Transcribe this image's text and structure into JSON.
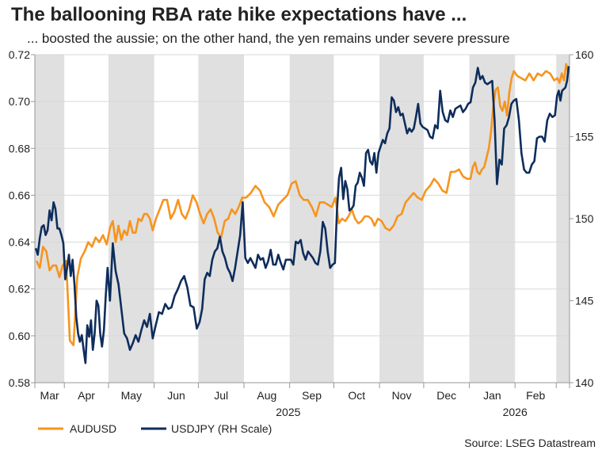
{
  "chart_data": {
    "type": "line",
    "title": "The ballooning RBA rate hike expectations have ...",
    "subtitle": "... boosted the aussie; on the other hand, the yen remains under severe pressure",
    "source": "Source: LSEG Datastream",
    "x_start": "2025-03-12",
    "x_end": "2026-03-10",
    "month_labels": [
      "Mar",
      "Apr",
      "May",
      "Jun",
      "Jul",
      "Aug",
      "Sep",
      "Oct",
      "Nov",
      "Dec",
      "Jan",
      "Feb",
      ""
    ],
    "month_starts": [
      "2025-03-12",
      "2025-04-01",
      "2025-05-01",
      "2025-06-01",
      "2025-07-01",
      "2025-08-01",
      "2025-09-01",
      "2025-10-01",
      "2025-11-01",
      "2025-12-01",
      "2026-01-01",
      "2026-02-01",
      "2026-03-01"
    ],
    "year_labels": [
      {
        "label": "2025",
        "center": "2025-08-31"
      },
      {
        "label": "2026",
        "center": "2026-02-01"
      }
    ],
    "left_axis": {
      "ylim": [
        0.58,
        0.72
      ],
      "ticks": [
        "0.58",
        "0.60",
        "0.62",
        "0.64",
        "0.66",
        "0.68",
        "0.70",
        "0.72"
      ]
    },
    "right_axis": {
      "ylim": [
        140,
        160
      ],
      "ticks": [
        "140",
        "145",
        "150",
        "155",
        "160"
      ]
    },
    "grid": true,
    "shaded_months": "alternating",
    "legend_position": "bottom-left",
    "series": [
      {
        "name": "AUDUSD",
        "axis": "left",
        "color": "#F7941D",
        "monthly_values": [
          [
            0.632,
            0.629,
            0.638,
            0.636,
            0.628,
            0.63,
            0.63,
            0.625,
            0.63
          ],
          [
            0.632,
            0.598,
            0.596,
            0.625,
            0.633,
            0.636,
            0.64,
            0.638,
            0.642,
            0.64,
            0.643,
            0.639
          ],
          [
            0.646,
            0.649,
            0.64,
            0.647,
            0.641,
            0.645,
            0.643,
            0.649,
            0.644,
            0.644,
            0.65,
            0.649,
            0.652,
            0.652,
            0.65,
            0.645
          ],
          [
            0.65,
            0.654,
            0.658,
            0.658,
            0.65,
            0.653,
            0.658,
            0.652,
            0.65,
            0.654,
            0.66,
            0.657
          ],
          [
            0.652,
            0.648,
            0.652,
            0.654,
            0.65,
            0.644,
            0.642,
            0.649,
            0.65,
            0.654,
            0.652,
            0.655,
            0.659
          ],
          [
            0.659,
            0.661,
            0.664,
            0.662,
            0.657,
            0.655,
            0.651,
            0.656,
            0.658,
            0.66
          ],
          [
            0.665,
            0.666,
            0.66,
            0.658,
            0.658,
            0.655,
            0.651,
            0.657,
            0.657,
            0.656,
            0.655
          ],
          [
            0.659,
            0.648,
            0.65,
            0.649,
            0.651,
            0.654,
            0.65,
            0.648,
            0.649,
            0.651,
            0.651,
            0.65,
            0.647,
            0.65
          ],
          [
            0.649,
            0.646,
            0.645,
            0.647,
            0.651,
            0.652,
            0.657,
            0.659,
            0.661,
            0.659,
            0.658
          ],
          [
            0.662,
            0.664,
            0.667,
            0.665,
            0.662,
            0.661,
            0.67,
            0.67,
            0.671,
            0.668,
            0.667
          ],
          [
            0.667,
            0.672,
            0.674,
            0.67,
            0.669,
            0.671,
            0.672,
            0.676,
            0.68,
            0.687,
            0.698,
            0.705,
            0.706,
            0.698,
            0.696,
            0.7,
            0.694,
            0.704,
            0.71,
            0.713
          ],
          [
            0.711,
            0.71,
            0.709,
            0.712,
            0.709,
            0.712,
            0.711,
            0.713,
            0.712,
            0.709
          ],
          [
            0.71,
            0.708,
            0.712,
            0.709,
            0.716,
            0.712
          ]
        ]
      },
      {
        "name": "USDJPY (RH Scale)",
        "axis": "right",
        "color": "#0E2D5C",
        "monthly_values": [
          [
            148.2,
            147.8,
            148.8,
            149.5,
            149.6,
            149.0,
            149.3,
            150.5,
            149.9,
            151.0,
            150.6,
            149.4,
            149.4,
            149.0,
            148.5
          ],
          [
            146.3,
            147.0,
            147.8,
            146.5,
            147.5,
            146.0,
            144.0,
            143.0,
            142.5,
            142.9,
            142.0,
            141.2,
            143.5,
            142.8,
            143.8,
            142.0,
            143.0,
            145.0,
            144.7,
            143.0,
            142.2,
            143.2,
            145.3,
            147.0
          ],
          [
            145.0,
            148.5,
            146.8,
            146.0,
            144.5,
            143.0,
            142.7,
            142.0,
            142.4,
            142.9,
            142.5,
            143.2,
            143.8,
            143.4,
            144.2,
            142.7
          ],
          [
            143.5,
            144.3,
            144.2,
            144.8,
            144.5,
            144.6,
            145.3,
            145.7,
            146.2,
            146.5,
            145.8,
            144.7,
            144.6,
            143.3
          ],
          [
            143.7,
            144.5,
            146.3,
            146.7,
            146.5,
            147.5,
            148.0,
            148.2,
            148.9,
            148.0,
            147.6,
            147.0,
            146.7,
            146.2,
            147.0,
            148.0,
            149.0,
            151.0
          ],
          [
            147.6,
            147.3,
            147.6,
            147.3,
            147.0,
            147.8,
            147.5,
            147.6,
            147.0,
            147.4,
            148.1,
            147.2,
            147.2,
            147.8,
            147.3,
            146.9,
            147.5,
            147.5
          ],
          [
            147.5,
            147.2,
            148.6,
            148.5,
            148.7,
            147.9,
            147.5,
            148.0,
            147.8,
            147.6,
            147.3,
            147.2,
            148.0,
            149.8,
            149.4,
            148.0,
            147.0,
            147.2
          ],
          [
            147.3,
            150.5,
            152.5,
            153.1,
            151.2,
            152.3,
            151.8,
            150.5,
            150.6,
            150.8,
            152.0,
            152.2,
            152.8,
            152.5,
            152.0,
            154.0,
            154.2,
            153.5,
            153.3,
            154.0,
            152.8,
            154.0
          ],
          [
            154.4,
            154.8,
            154.6,
            155.2,
            155.5,
            157.4,
            157.2,
            156.5,
            156.8,
            156.3,
            156.4,
            155.8,
            155.2,
            155.5,
            155.3,
            155.5,
            156.2,
            157.0,
            155.8,
            155.6
          ],
          [
            155.5,
            155.4,
            155.0,
            154.9,
            155.7,
            155.5,
            157.8,
            156.5,
            156.0,
            155.9,
            156.6,
            156.2,
            156.7,
            156.8,
            156.9,
            156.5,
            156.7,
            157.0
          ],
          [
            157.1,
            158.0,
            158.3,
            159.2,
            158.5,
            158.7,
            158.3,
            158.2,
            158.3,
            158.4,
            156.0,
            152.1,
            153.6,
            153.3,
            155.5,
            155.7,
            156.2,
            157.0,
            157.2
          ],
          [
            157.3,
            156.0,
            154.0,
            153.0,
            152.8,
            152.8,
            153.3,
            153.5,
            154.9,
            155.0,
            155.0,
            154.7,
            156.0,
            156.4,
            156.2,
            156.3
          ],
          [
            157.5,
            157.8,
            157.2,
            157.8,
            157.9,
            158.0,
            158.4,
            159.3
          ]
        ]
      }
    ]
  }
}
